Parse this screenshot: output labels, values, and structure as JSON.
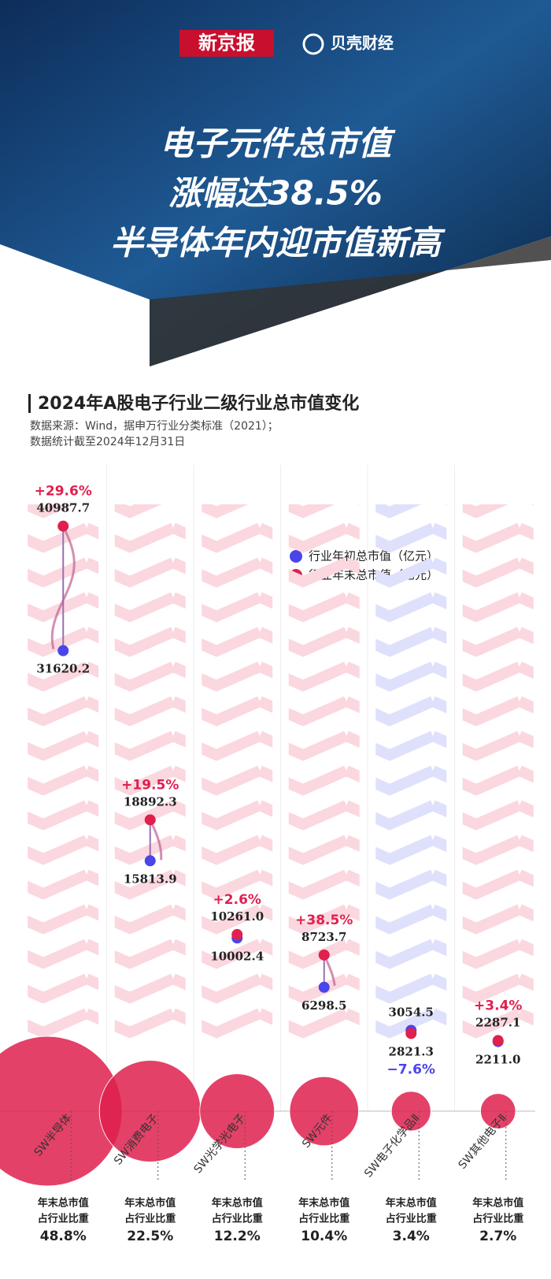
{
  "header": {
    "brand": [
      "新京报",
      "贝壳财经"
    ],
    "title": [
      "电子元件总市值",
      "涨幅达38.5%",
      "半导体年内迎市值新高"
    ]
  },
  "chart_data": {
    "type": "dumbbell",
    "title": "2024年A股电子行业二级行业总市值变化",
    "subtitle": [
      "数据来源：Wind，据申万行业分类标准（2021）；",
      "数据统计截至2024年12月31日"
    ],
    "categories": [
      "SW半导体",
      "SW消费电子",
      "SW光学光电子",
      "SW元件",
      "SW电子化学品Ⅱ",
      "SW其他电子Ⅱ"
    ],
    "ylim": [
      0,
      45000
    ],
    "series": [
      {
        "name": "行业年初总市值（亿元）",
        "color": "#4a45e8",
        "values": [
          31620.2,
          15813.9,
          10002.4,
          6298.5,
          3054.5,
          2211.0
        ],
        "value_labels": [
          "31620.2",
          "15813.9",
          "10002.4",
          "6298.5",
          "3054.5",
          "2211.0"
        ]
      },
      {
        "name": "行业年末总市值（亿元）",
        "color": "#e0204e",
        "values": [
          40987.7,
          18892.3,
          10261.0,
          8723.7,
          2821.3,
          2287.1
        ],
        "value_labels": [
          "40987.7",
          "18892.3",
          "10261.0",
          "8723.7",
          "2821.3",
          "2287.1"
        ]
      }
    ],
    "change": {
      "values": [
        29.6,
        19.5,
        2.6,
        38.5,
        -7.6,
        3.4
      ],
      "value_labels": [
        "+29.6%",
        "+19.5%",
        "+2.6%",
        "+38.5%",
        "−7.6%",
        "+3.4%"
      ]
    },
    "share": {
      "label": [
        "年末总市值",
        "占行业比重"
      ],
      "values": [
        48.8,
        22.5,
        12.2,
        10.4,
        3.4,
        2.7
      ],
      "value_labels": [
        "48.8%",
        "22.5%",
        "12.2%",
        "10.4%",
        "3.4%",
        "2.7%"
      ],
      "color": "#e0204e"
    }
  }
}
